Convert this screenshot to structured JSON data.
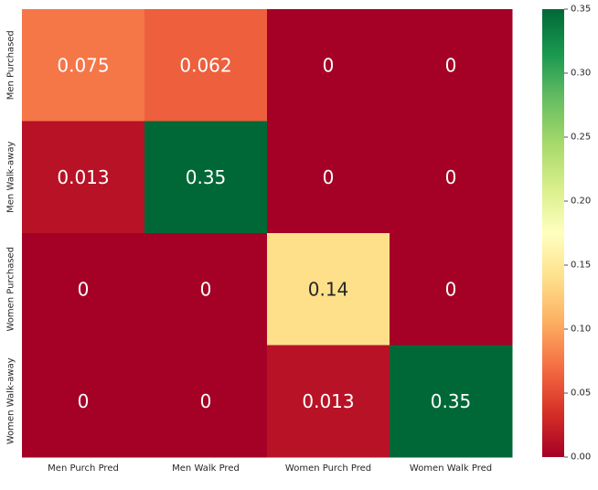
{
  "chart_data": {
    "type": "heatmap",
    "x_labels": [
      "Men Purch Pred",
      "Men Walk Pred",
      "Women Purch Pred",
      "Women Walk Pred"
    ],
    "y_labels": [
      "Men Purchased",
      "Men Walk-away",
      "Women Purchased",
      "Women Walk-away"
    ],
    "values": [
      [
        0.075,
        0.062,
        0,
        0
      ],
      [
        0.013,
        0.35,
        0,
        0
      ],
      [
        0,
        0,
        0.14,
        0
      ],
      [
        0,
        0,
        0.013,
        0.35
      ]
    ],
    "annotations": [
      [
        "0.075",
        "0.062",
        "0",
        "0"
      ],
      [
        "0.013",
        "0.35",
        "0",
        "0"
      ],
      [
        "0",
        "0",
        "0.14",
        "0"
      ],
      [
        "0",
        "0",
        "0.013",
        "0.35"
      ]
    ],
    "colormap": "RdYlGn",
    "vmin": 0,
    "vmax": 0.35,
    "colorbar_ticks": [
      "0.00",
      "0.05",
      "0.10",
      "0.15",
      "0.20",
      "0.25",
      "0.30",
      "0.35"
    ],
    "colorbar_tick_values": [
      0,
      0.05,
      0.1,
      0.15,
      0.2,
      0.25,
      0.3,
      0.35
    ],
    "title": "",
    "xlabel": "",
    "ylabel": ""
  }
}
